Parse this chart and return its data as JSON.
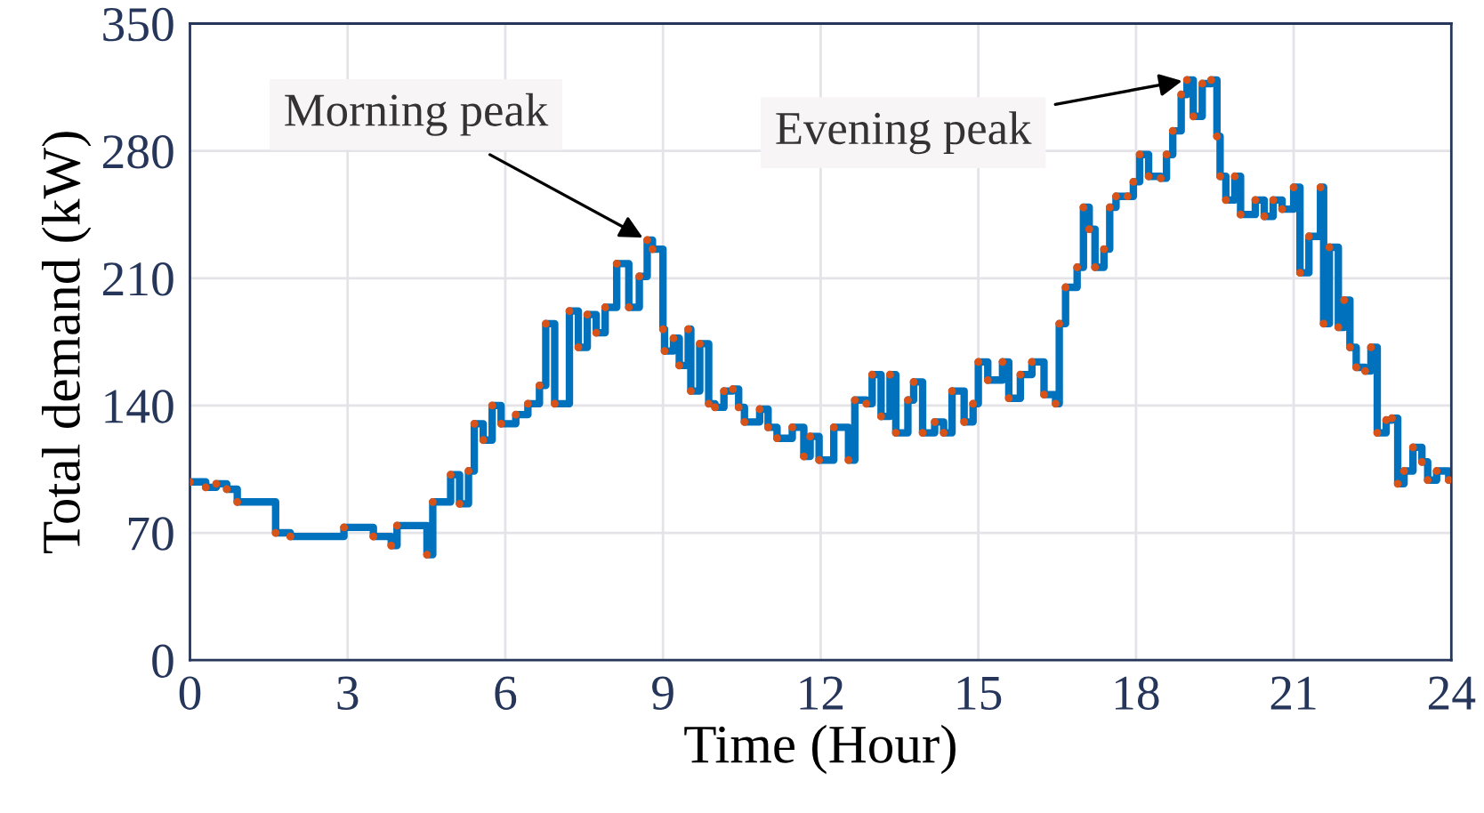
{
  "chart_data": {
    "type": "step",
    "xlabel": "Time (Hour)",
    "ylabel": "Total demand (kW)",
    "xlim": [
      0,
      24
    ],
    "xticks": [
      0,
      3,
      6,
      9,
      12,
      15,
      18,
      21,
      24
    ],
    "ylim": [
      0,
      350
    ],
    "yticks": [
      0,
      70,
      140,
      210,
      280,
      350
    ],
    "grid": true,
    "legend": false,
    "x": [
      0,
      0.3,
      0.5,
      0.7,
      0.9,
      1.63,
      1.91,
      2.93,
      3.49,
      3.83,
      3.94,
      4.51,
      4.62,
      4.96,
      5.13,
      5.3,
      5.41,
      5.58,
      5.75,
      5.92,
      6.2,
      6.43,
      6.65,
      6.77,
      6.94,
      7.22,
      7.39,
      7.56,
      7.73,
      7.9,
      8.12,
      8.35,
      8.55,
      8.7,
      8.8,
      9.0,
      9.03,
      9.2,
      9.31,
      9.48,
      9.53,
      9.7,
      9.87,
      9.99,
      10.16,
      10.33,
      10.44,
      10.55,
      10.84,
      11.0,
      11.17,
      11.46,
      11.68,
      11.8,
      11.97,
      12.25,
      12.53,
      12.65,
      12.87,
      12.98,
      13.15,
      13.32,
      13.43,
      13.66,
      13.77,
      13.94,
      14.17,
      14.34,
      14.5,
      14.73,
      14.9,
      15.0,
      15.18,
      15.46,
      15.58,
      15.8,
      16.02,
      16.25,
      16.47,
      16.54,
      16.66,
      16.88,
      17.0,
      17.11,
      17.22,
      17.39,
      17.5,
      17.62,
      17.84,
      17.95,
      18.07,
      18.24,
      18.47,
      18.58,
      18.7,
      18.86,
      18.97,
      19.09,
      19.26,
      19.43,
      19.54,
      19.6,
      19.71,
      19.88,
      19.99,
      20.27,
      20.44,
      20.61,
      20.78,
      21.0,
      21.12,
      21.29,
      21.51,
      21.57,
      21.68,
      21.85,
      21.96,
      22.07,
      22.19,
      22.36,
      22.47,
      22.59,
      22.76,
      22.87,
      22.98,
      23.1,
      23.27,
      23.44,
      23.55,
      23.72,
      23.95
    ],
    "series": [
      {
        "color": "#0072bd",
        "values": [
          98,
          95,
          97,
          94,
          87,
          70,
          68,
          73,
          68,
          63,
          74,
          58,
          87,
          102,
          86,
          104,
          130,
          121,
          140,
          130,
          135,
          141,
          151,
          185,
          141,
          192,
          172,
          190,
          180,
          194,
          218,
          194,
          211,
          231,
          226,
          182,
          170,
          177,
          162,
          182,
          148,
          174,
          141,
          139,
          148,
          149,
          139,
          131,
          138,
          128,
          122,
          128,
          112,
          123,
          110,
          128,
          110,
          143,
          141,
          157,
          134,
          157,
          125,
          143,
          153,
          125,
          131,
          125,
          148,
          131,
          141,
          164,
          154,
          164,
          144,
          157,
          164,
          146,
          141,
          185,
          205,
          216,
          249,
          237,
          216,
          226,
          249,
          255,
          255,
          263,
          278,
          266,
          265,
          278,
          291,
          311,
          319,
          299,
          317,
          319,
          288,
          266,
          253,
          266,
          245,
          253,
          244,
          253,
          248,
          260,
          213,
          233,
          260,
          185,
          227,
          183,
          198,
          172,
          161,
          159,
          172,
          125,
          132,
          133,
          97,
          104,
          117,
          109,
          99,
          104,
          99
        ]
      },
      {
        "type": "scatter",
        "color": "#d95319",
        "marker": "circle",
        "values": [
          98,
          95,
          97,
          94,
          87,
          70,
          68,
          73,
          68,
          63,
          74,
          58,
          87,
          102,
          86,
          104,
          130,
          121,
          140,
          130,
          135,
          141,
          151,
          185,
          141,
          192,
          172,
          190,
          180,
          194,
          218,
          194,
          211,
          231,
          226,
          182,
          170,
          177,
          162,
          182,
          148,
          174,
          141,
          139,
          148,
          149,
          139,
          131,
          138,
          128,
          122,
          128,
          112,
          123,
          110,
          128,
          110,
          143,
          141,
          157,
          134,
          157,
          125,
          143,
          153,
          125,
          131,
          125,
          148,
          131,
          141,
          164,
          154,
          164,
          144,
          157,
          164,
          146,
          141,
          185,
          205,
          216,
          249,
          237,
          216,
          226,
          249,
          255,
          255,
          263,
          278,
          266,
          265,
          278,
          291,
          311,
          319,
          299,
          317,
          319,
          288,
          266,
          253,
          266,
          245,
          253,
          244,
          253,
          248,
          260,
          213,
          233,
          260,
          185,
          227,
          183,
          198,
          172,
          161,
          159,
          172,
          125,
          132,
          133,
          97,
          104,
          117,
          109,
          99,
          104,
          99
        ]
      }
    ],
    "annotations": [
      {
        "text": "Morning peak",
        "x": 8.7,
        "y": 231
      },
      {
        "text": "Evening peak",
        "x": 18.97,
        "y": 319
      }
    ]
  }
}
